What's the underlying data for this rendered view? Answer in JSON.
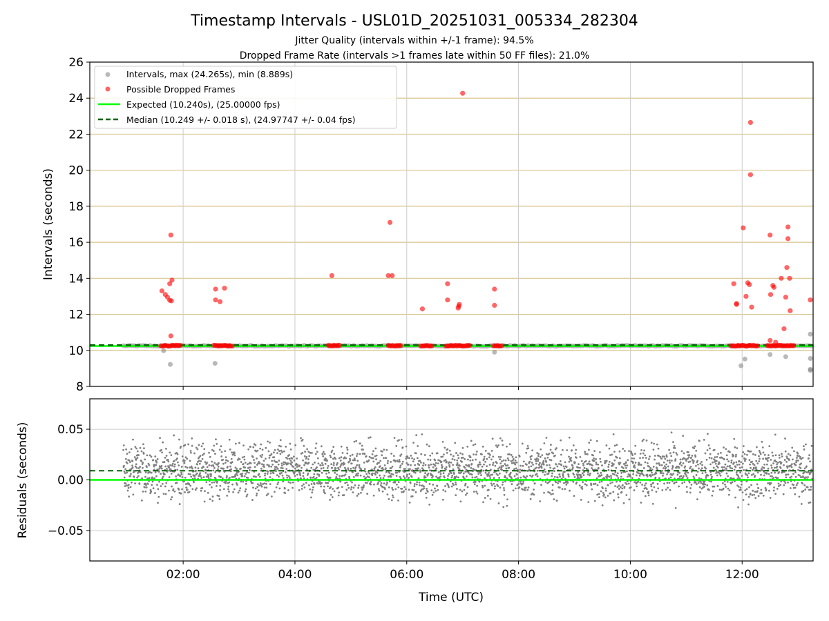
{
  "chart_data": [
    {
      "type": "scatter",
      "title": "Timestamp Intervals - USL01D_20251031_005334_282304",
      "subtitle_lines": [
        "Jitter Quality (intervals within +/-1 frame): 94.5%",
        "Dropped Frame Rate (intervals >1 frames late within 50 FF files): 21.0%"
      ],
      "ylabel": "Intervals (seconds)",
      "ylim": [
        8,
        26
      ],
      "yticks": [
        "8",
        "10",
        "12",
        "14",
        "16",
        "18",
        "20",
        "22",
        "24",
        "26"
      ],
      "xlim_hours": [
        0.33,
        13.27
      ],
      "grid": true,
      "legend_position": "top-left",
      "series": [
        {
          "name": "Intervals, max (24.265s), min (8.889s)",
          "color": "#808080",
          "x_range_hours": [
            0.93,
            13.25
          ],
          "baseline_y": 10.25,
          "outliers": [
            [
              1.65,
              9.98
            ],
            [
              1.77,
              9.22
            ],
            [
              2.57,
              9.28
            ],
            [
              7.57,
              9.9
            ],
            [
              11.98,
              9.15
            ],
            [
              12.05,
              9.52
            ],
            [
              12.5,
              9.77
            ],
            [
              12.78,
              9.65
            ],
            [
              13.22,
              9.55
            ],
            [
              13.22,
              8.95
            ],
            [
              13.22,
              8.89
            ],
            [
              13.22,
              10.9
            ]
          ]
        },
        {
          "name": "Possible Dropped Frames",
          "color": "#ff0000",
          "baseline_clusters_hours": [
            [
              1.6,
              1.97
            ],
            [
              2.55,
              2.88
            ],
            [
              4.6,
              4.82
            ],
            [
              5.67,
              5.92
            ],
            [
              6.25,
              6.47
            ],
            [
              6.7,
              7.15
            ],
            [
              7.55,
              7.72
            ],
            [
              11.8,
              12.3
            ],
            [
              12.45,
              12.95
            ]
          ],
          "points": [
            [
              1.62,
              13.3
            ],
            [
              1.68,
              13.1
            ],
            [
              1.72,
              12.95
            ],
            [
              1.76,
              12.78
            ],
            [
              1.79,
              12.75
            ],
            [
              1.76,
              13.7
            ],
            [
              1.78,
              16.4
            ],
            [
              1.8,
              13.9
            ],
            [
              1.78,
              10.8
            ],
            [
              2.58,
              13.4
            ],
            [
              2.58,
              12.8
            ],
            [
              2.66,
              12.7
            ],
            [
              2.74,
              13.45
            ],
            [
              4.66,
              14.15
            ],
            [
              5.67,
              14.15
            ],
            [
              5.74,
              14.15
            ],
            [
              5.7,
              17.1
            ],
            [
              6.28,
              12.3
            ],
            [
              6.73,
              13.7
            ],
            [
              6.73,
              12.8
            ],
            [
              6.92,
              12.35
            ],
            [
              6.94,
              12.55
            ],
            [
              6.93,
              12.45
            ],
            [
              7.0,
              24.27
            ],
            [
              7.57,
              13.4
            ],
            [
              7.57,
              12.5
            ],
            [
              11.85,
              13.7
            ],
            [
              11.9,
              12.6
            ],
            [
              11.9,
              12.55
            ],
            [
              12.02,
              16.8
            ],
            [
              12.07,
              13.0
            ],
            [
              12.1,
              13.75
            ],
            [
              12.13,
              13.65
            ],
            [
              12.15,
              22.65
            ],
            [
              12.15,
              19.75
            ],
            [
              12.17,
              12.4
            ],
            [
              12.5,
              16.4
            ],
            [
              12.51,
              13.1
            ],
            [
              12.55,
              13.6
            ],
            [
              12.57,
              13.5
            ],
            [
              12.7,
              14.0
            ],
            [
              12.75,
              11.2
            ],
            [
              12.78,
              12.95
            ],
            [
              12.8,
              14.6
            ],
            [
              12.82,
              16.85
            ],
            [
              12.82,
              16.2
            ],
            [
              12.85,
              14.0
            ],
            [
              12.86,
              12.2
            ],
            [
              12.5,
              10.55
            ],
            [
              12.6,
              10.45
            ],
            [
              13.22,
              12.8
            ]
          ]
        },
        {
          "name": "Expected (10.240s), (25.00000 fps)",
          "color": "#00ff00",
          "y": 10.24
        },
        {
          "name": "Median (10.249 +/- 0.018 s), (24.97747 +/- 0.04 fps)",
          "color": "#006400",
          "y": 10.249
        }
      ]
    },
    {
      "type": "scatter",
      "xlabel": "Time (UTC)",
      "ylabel": "Residuals (seconds)",
      "ylim": [
        -0.08,
        0.08
      ],
      "yticks": [
        "−0.05",
        "0.00",
        "0.05"
      ],
      "xlim_hours": [
        0.33,
        13.27
      ],
      "xticks": [
        "02:00",
        "04:00",
        "06:00",
        "08:00",
        "10:00",
        "12:00"
      ],
      "grid": true,
      "series": [
        {
          "color": "#808080",
          "x_range_hours": [
            0.93,
            13.25
          ],
          "center_y": 0.009,
          "spread_y": 0.025
        },
        {
          "color": "#00ff00",
          "y": 0.0
        },
        {
          "color": "#006400",
          "y": 0.009
        }
      ]
    }
  ]
}
